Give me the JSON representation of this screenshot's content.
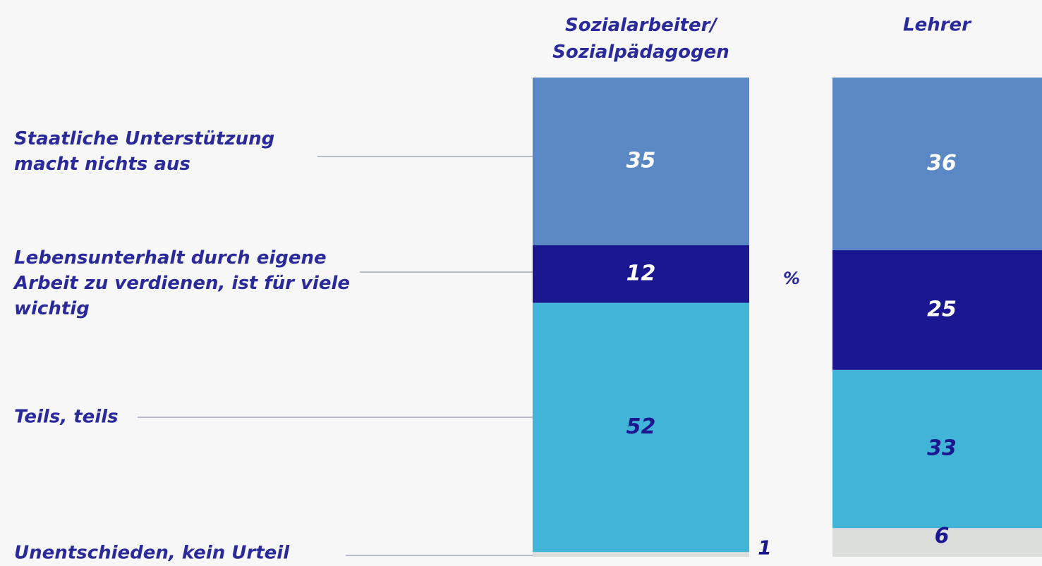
{
  "chart_data": {
    "type": "bar",
    "stacked": true,
    "categories": [
      "Sozialarbeiter/\nSozialpädagogen",
      "Lehrer"
    ],
    "unit_label": "%",
    "series": [
      {
        "name": "Staatliche Unterstützung\nmacht nichts aus",
        "color": "#5a88c4",
        "values": [
          35,
          36
        ]
      },
      {
        "name": "Lebensunterhalt durch eigene\nArbeit zu verdienen, ist für viele\nwichtig",
        "color": "#1b1790",
        "values": [
          12,
          25
        ]
      },
      {
        "name": "Teils, teils",
        "color": "#42b4d8",
        "values": [
          52,
          33
        ]
      },
      {
        "name": "Unentschieden, kein Urteil",
        "color": "#dcdedb",
        "values": [
          1,
          6
        ]
      }
    ]
  }
}
